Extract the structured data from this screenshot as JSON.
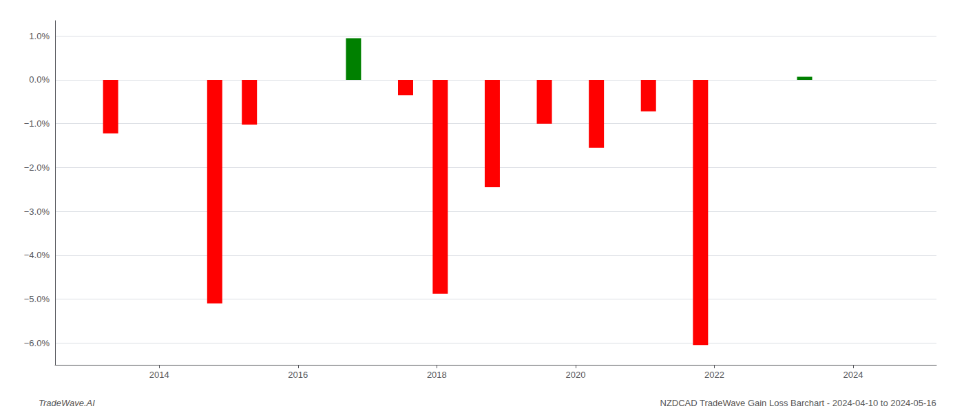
{
  "chart_data": {
    "type": "bar",
    "x": [
      2013.3,
      2014.8,
      2015.3,
      2016.8,
      2017.55,
      2018.05,
      2018.8,
      2019.55,
      2020.3,
      2021.05,
      2021.8,
      2023.3
    ],
    "values": [
      -1.22,
      -5.1,
      -1.02,
      0.95,
      -0.35,
      -4.88,
      -2.45,
      -1.0,
      -1.55,
      -0.72,
      -6.05,
      0.07
    ],
    "colors": [
      "#ff0000",
      "#ff0000",
      "#ff0000",
      "#008000",
      "#ff0000",
      "#ff0000",
      "#ff0000",
      "#ff0000",
      "#ff0000",
      "#ff0000",
      "#ff0000",
      "#008000"
    ],
    "xlim": [
      2012.5,
      2025.2
    ],
    "xticks": [
      2014,
      2016,
      2018,
      2020,
      2022,
      2024
    ],
    "ylim": [
      -6.5,
      1.35
    ],
    "yticks": [
      {
        "value": -6.0,
        "label": "−6.0%"
      },
      {
        "value": -5.0,
        "label": "−5.0%"
      },
      {
        "value": -4.0,
        "label": "−4.0%"
      },
      {
        "value": -3.0,
        "label": "−3.0%"
      },
      {
        "value": -2.0,
        "label": "−2.0%"
      },
      {
        "value": -1.0,
        "label": "−1.0%"
      },
      {
        "value": 0.0,
        "label": "0.0%"
      },
      {
        "value": 1.0,
        "label": "1.0%"
      }
    ],
    "grid": true,
    "annotations": [
      "TradeWave.AI",
      "NZDCAD TradeWave Gain Loss Barchart - 2024-04-10 to 2024-05-16"
    ]
  }
}
